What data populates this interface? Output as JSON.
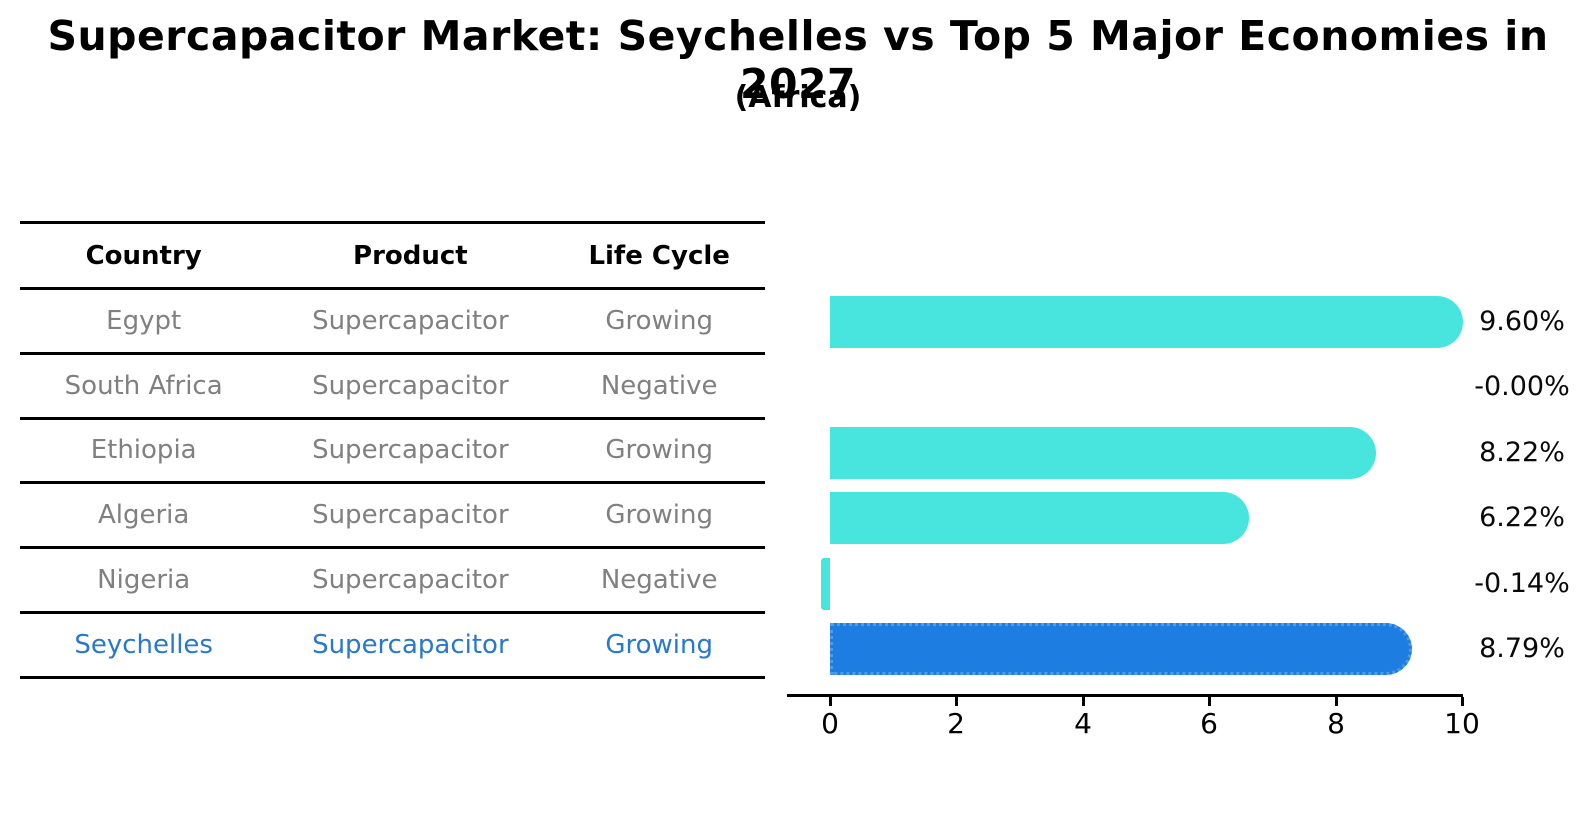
{
  "title": "Supercapacitor Market: Seychelles vs Top 5 Major Economies in 2027",
  "subtitle": "(Africa)",
  "table": {
    "headers": {
      "country": "Country",
      "product": "Product",
      "life_cycle": "Life Cycle"
    },
    "rows": [
      {
        "country": "Egypt",
        "product": "Supercapacitor",
        "life_cycle": "Growing",
        "highlight": false
      },
      {
        "country": "South Africa",
        "product": "Supercapacitor",
        "life_cycle": "Negative",
        "highlight": false
      },
      {
        "country": "Ethiopia",
        "product": "Supercapacitor",
        "life_cycle": "Growing",
        "highlight": false
      },
      {
        "country": "Algeria",
        "product": "Supercapacitor",
        "life_cycle": "Growing",
        "highlight": false
      },
      {
        "country": "Nigeria",
        "product": "Supercapacitor",
        "life_cycle": "Negative",
        "highlight": false
      },
      {
        "country": "Seychelles",
        "product": "Supercapacitor",
        "life_cycle": "Growing",
        "highlight": true
      }
    ]
  },
  "chart_data": {
    "type": "bar",
    "orientation": "horizontal",
    "categories": [
      "Egypt",
      "South Africa",
      "Ethiopia",
      "Algeria",
      "Nigeria",
      "Seychelles"
    ],
    "values": [
      9.6,
      -0.0,
      8.22,
      6.22,
      -0.14,
      8.79
    ],
    "labels": [
      "9.60%",
      "-0.00%",
      "8.22%",
      "6.22%",
      "-0.14%",
      "8.79%"
    ],
    "xticks": [
      0,
      2,
      4,
      6,
      8,
      10
    ],
    "xlim": [
      -0.7,
      10
    ],
    "grid": false,
    "legend": "none",
    "highlight_index": 5,
    "bar_color": "#48E5DF",
    "highlight_color": "#1E7DE0",
    "highlight_border_color": "#4D9BEB",
    "accent_text_color": "#2878CE"
  }
}
